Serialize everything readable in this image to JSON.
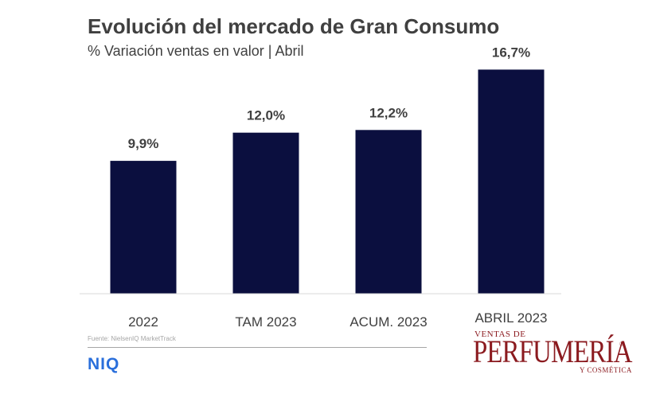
{
  "header": {
    "title": "Evolución del mercado de Gran Consumo",
    "subtitle": "% Variación ventas en valor | Abril"
  },
  "chart_data": {
    "type": "bar",
    "categories": [
      "2022",
      "TAM 2023",
      "ACUM. 2023",
      "ABRIL 2023"
    ],
    "values": [
      9.9,
      12.0,
      12.2,
      16.7
    ],
    "value_labels": [
      "9,9%",
      "12,0%",
      "12,2%",
      "16,7%"
    ],
    "title": "Evolución del mercado de Gran Consumo",
    "subtitle": "% Variación ventas en valor | Abril",
    "ylim": [
      0,
      17.2
    ],
    "grid": false,
    "bar_color": "#0b0f3f"
  },
  "footer": {
    "source": "Fuente: NielsenIQ MarketTrack",
    "niq_logo": "NIQ",
    "niq_color": "#2a6fdb"
  },
  "brand": {
    "top": "VENTAS DE",
    "main": "PERFUMERÍA",
    "registered": "®",
    "bottom": "Y COSMÉTICA",
    "color": "#8b1a1f"
  }
}
